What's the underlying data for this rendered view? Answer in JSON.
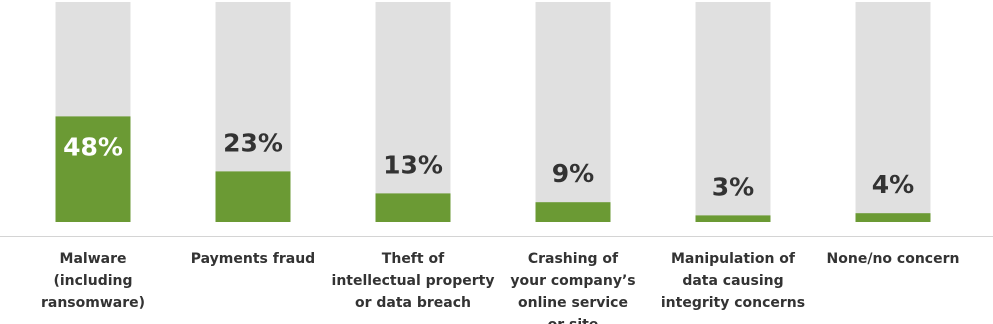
{
  "chart_data": {
    "type": "bar",
    "categories": [
      [
        "Malware",
        "(including",
        "ransomware)"
      ],
      [
        "Payments fraud"
      ],
      [
        "Theft of",
        "intellectual property",
        "or data breach"
      ],
      [
        "Crashing of",
        "your company’s",
        "online service",
        "or site"
      ],
      [
        "Manipulation of",
        "data causing",
        "integrity concerns"
      ],
      [
        "None/no concern"
      ]
    ],
    "values": [
      48,
      23,
      13,
      9,
      3,
      4
    ],
    "value_labels": [
      "48%",
      "23%",
      "13%",
      "9%",
      "3%",
      "4%"
    ],
    "ylim": [
      0,
      100
    ],
    "color": "#6b9a34",
    "track_color": "#e0e0e0"
  }
}
